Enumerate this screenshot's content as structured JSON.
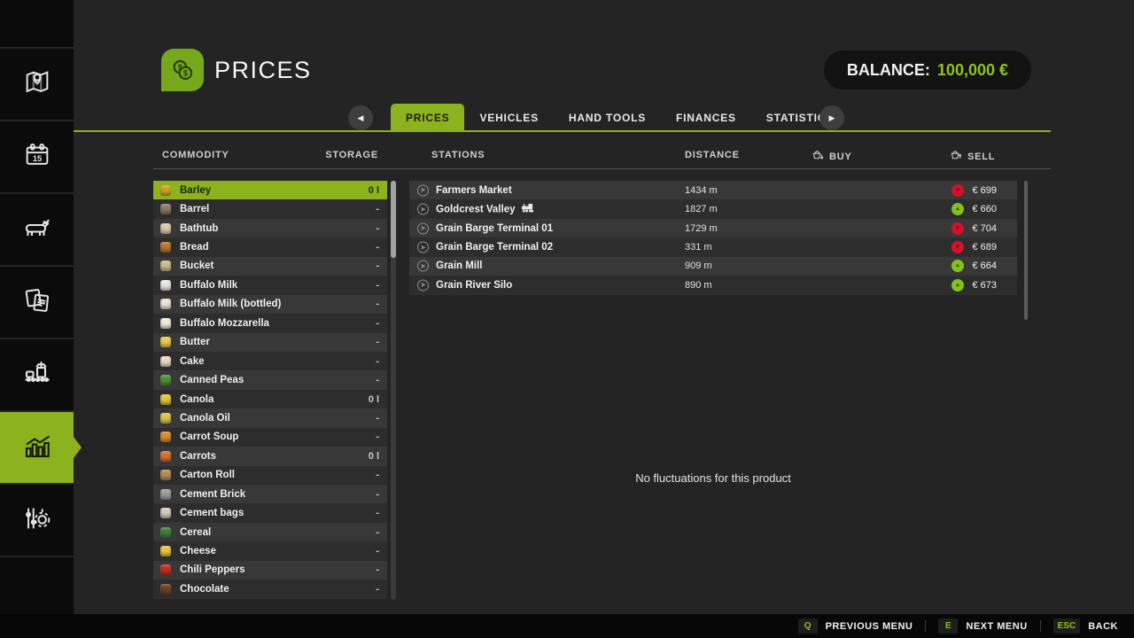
{
  "colors": {
    "accent_green": "#8cb21e",
    "balance_green": "#8ec41e",
    "badge_up_green": "#84c11e",
    "badge_down_red": "#d5102b",
    "row_light": "#383838",
    "row_dark": "#2d2d2d",
    "background": "#242424",
    "sidebar_black": "#0b0b0b"
  },
  "sidebar": {
    "items": [
      {
        "name": "map",
        "icon": "map-pin-icon",
        "active": false
      },
      {
        "name": "calendar",
        "icon": "calendar-icon",
        "active": false,
        "day": "15"
      },
      {
        "name": "animals",
        "icon": "cow-icon",
        "active": false
      },
      {
        "name": "contracts",
        "icon": "documents-icon",
        "active": false
      },
      {
        "name": "production",
        "icon": "production-line-icon",
        "active": false
      },
      {
        "name": "prices-statistics",
        "icon": "bar-chart-icon",
        "active": true
      },
      {
        "name": "settings",
        "icon": "sliders-gear-icon",
        "active": false
      }
    ]
  },
  "header": {
    "title": "PRICES",
    "icon": "coins-icon",
    "balance_label": "BALANCE:",
    "balance_value": "100,000 €"
  },
  "tabs": {
    "items": [
      "PRICES",
      "VEHICLES",
      "HAND TOOLS",
      "FINANCES",
      "STATISTICS"
    ],
    "active": "PRICES",
    "prev_arrow": "left-arrow-button",
    "next_arrow": "right-arrow-button"
  },
  "table": {
    "commodity_header": "COMMODITY",
    "storage_header": "STORAGE",
    "stations_header": "STATIONS",
    "distance_header": "DISTANCE",
    "buy_header": "BUY",
    "sell_header": "SELL",
    "buy_icon": "basket-down-icon",
    "sell_icon": "basket-up-icon"
  },
  "commodities": [
    {
      "name": "Barley",
      "storage": "0 l",
      "selected": true,
      "chip_color": "#c9a227"
    },
    {
      "name": "Barrel",
      "storage": "-",
      "selected": false,
      "chip_color": "#8a7b66"
    },
    {
      "name": "Bathtub",
      "storage": "-",
      "selected": false,
      "chip_color": "#d8c9a8"
    },
    {
      "name": "Bread",
      "storage": "-",
      "selected": false,
      "chip_color": "#b5762f"
    },
    {
      "name": "Bucket",
      "storage": "-",
      "selected": false,
      "chip_color": "#c9b98a"
    },
    {
      "name": "Buffalo Milk",
      "storage": "-",
      "selected": false,
      "chip_color": "#e8e6e0"
    },
    {
      "name": "Buffalo Milk (bottled)",
      "storage": "-",
      "selected": false,
      "chip_color": "#e9e5d4"
    },
    {
      "name": "Buffalo Mozzarella",
      "storage": "-",
      "selected": false,
      "chip_color": "#efe9df"
    },
    {
      "name": "Butter",
      "storage": "-",
      "selected": false,
      "chip_color": "#e9c94a"
    },
    {
      "name": "Cake",
      "storage": "-",
      "selected": false,
      "chip_color": "#e8d7c0"
    },
    {
      "name": "Canned Peas",
      "storage": "-",
      "selected": false,
      "chip_color": "#4f8f3a"
    },
    {
      "name": "Canola",
      "storage": "0 l",
      "selected": false,
      "chip_color": "#e3c33b"
    },
    {
      "name": "Canola Oil",
      "storage": "-",
      "selected": false,
      "chip_color": "#d8c248"
    },
    {
      "name": "Carrot Soup",
      "storage": "-",
      "selected": false,
      "chip_color": "#d98a2b"
    },
    {
      "name": "Carrots",
      "storage": "0 l",
      "selected": false,
      "chip_color": "#d9702a"
    },
    {
      "name": "Carton Roll",
      "storage": "-",
      "selected": false,
      "chip_color": "#b08d52"
    },
    {
      "name": "Cement Brick",
      "storage": "-",
      "selected": false,
      "chip_color": "#9a9a96"
    },
    {
      "name": "Cement bags",
      "storage": "-",
      "selected": false,
      "chip_color": "#cfc9bd"
    },
    {
      "name": "Cereal",
      "storage": "-",
      "selected": false,
      "chip_color": "#3f7d3a"
    },
    {
      "name": "Cheese",
      "storage": "-",
      "selected": false,
      "chip_color": "#e8c23a"
    },
    {
      "name": "Chili Peppers",
      "storage": "-",
      "selected": false,
      "chip_color": "#c22f1f"
    },
    {
      "name": "Chocolate",
      "storage": "-",
      "selected": false,
      "chip_color": "#6f4322"
    }
  ],
  "stations": [
    {
      "name": "Farmers Market",
      "train": false,
      "distance": "1434 m",
      "buy": "",
      "sell": "€ 699",
      "trend": "down"
    },
    {
      "name": "Goldcrest Valley",
      "train": true,
      "distance": "1827 m",
      "buy": "",
      "sell": "€ 660",
      "trend": "up"
    },
    {
      "name": "Grain Barge Terminal 01",
      "train": false,
      "distance": "1729 m",
      "buy": "",
      "sell": "€ 704",
      "trend": "down"
    },
    {
      "name": "Grain Barge Terminal 02",
      "train": false,
      "distance": "331 m",
      "buy": "",
      "sell": "€ 689",
      "trend": "down"
    },
    {
      "name": "Grain Mill",
      "train": false,
      "distance": "909 m",
      "buy": "",
      "sell": "€ 664",
      "trend": "up"
    },
    {
      "name": "Grain River Silo",
      "train": false,
      "distance": "890 m",
      "buy": "",
      "sell": "€ 673",
      "trend": "up"
    }
  ],
  "empty_chart_message": "No fluctuations for this product",
  "footer": {
    "shortcuts": [
      {
        "key": "Q",
        "label": "PREVIOUS MENU"
      },
      {
        "key": "E",
        "label": "NEXT MENU"
      },
      {
        "key": "ESC",
        "label": "BACK"
      }
    ]
  }
}
